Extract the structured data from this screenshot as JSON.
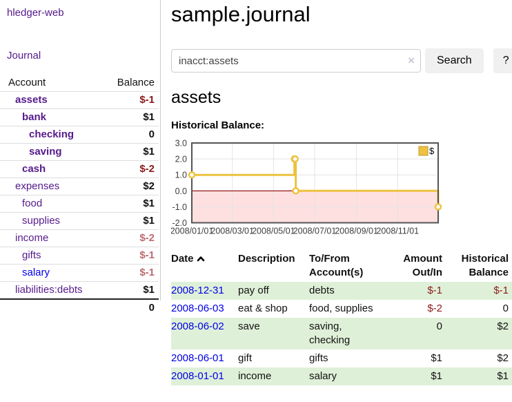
{
  "brand": "hledger-web",
  "colors": {
    "link_purple": "#551a8b",
    "link_blue": "#0000e6",
    "negative_dark": "#8b1a1a",
    "negative_light": "#bd6a70",
    "row_green": "#dff0d8",
    "series_gold": "#edc240",
    "zero_line": "#8b0000",
    "negative_region": "rgba(255,0,0,0.12)"
  },
  "sidebar": {
    "journal_label": "Journal",
    "accounts": {
      "col_account": "Account",
      "col_balance": "Balance",
      "rows": [
        {
          "account": "assets",
          "balance": "$-1",
          "depth": 0,
          "bold": true
        },
        {
          "account": "bank",
          "balance": "$1",
          "depth": 1,
          "bold": true
        },
        {
          "account": "checking",
          "balance": "0",
          "depth": 2,
          "bold": true
        },
        {
          "account": "saving",
          "balance": "$1",
          "depth": 2,
          "bold": true
        },
        {
          "account": "cash",
          "balance": "$-2",
          "depth": 1,
          "bold": true
        },
        {
          "account": "expenses",
          "balance": "$2",
          "depth": 0,
          "bold": false
        },
        {
          "account": "food",
          "balance": "$1",
          "depth": 1,
          "bold": false
        },
        {
          "account": "supplies",
          "balance": "$1",
          "depth": 1,
          "bold": false
        },
        {
          "account": "income",
          "balance": "$-2",
          "depth": 0,
          "bold": false
        },
        {
          "account": "gifts",
          "balance": "$-1",
          "depth": 1,
          "bold": false
        },
        {
          "account": "salary",
          "balance": "$-1",
          "depth": 1,
          "bold": false,
          "link_color": "blue"
        },
        {
          "account": "liabilities:debts",
          "balance": "$1",
          "depth": 0,
          "bold": false
        }
      ],
      "total": "0"
    }
  },
  "header": {
    "title": "sample.journal"
  },
  "search": {
    "value": "inacct:assets",
    "clear_icon": "×",
    "button_label": "Search",
    "help_label": "?"
  },
  "account": {
    "title": "assets",
    "chart_label": "Historical Balance:"
  },
  "chart_data": {
    "type": "line",
    "step": true,
    "title": "Historical Balance:",
    "series": [
      {
        "name": "$",
        "color": "#edc240",
        "points": [
          [
            "2008-01-01",
            1
          ],
          [
            "2008-06-01",
            2
          ],
          [
            "2008-06-02",
            2
          ],
          [
            "2008-06-03",
            0
          ],
          [
            "2008-12-31",
            -1
          ]
        ]
      }
    ],
    "x_ticks": [
      "2008/01/01",
      "2008/03/01",
      "2008/05/01",
      "2008/07/01",
      "2008/09/01",
      "2008/11/01"
    ],
    "y_ticks": [
      "3.0",
      "2.0",
      "1.0",
      "0.0",
      "-1.0",
      "-2.0"
    ],
    "ylim": [
      -2,
      3
    ],
    "xlim_dates": [
      "2008-01-01",
      "2008-12-31"
    ],
    "grid": true,
    "legend_position": "top-right",
    "negative_region": true
  },
  "register": {
    "columns": {
      "date": "Date",
      "description": "Description",
      "accounts": "To/From Account(s)",
      "amount": "Amount Out/In",
      "balance": "Historical Balance"
    },
    "sort": "ascending",
    "rows": [
      {
        "date": "2008-12-31",
        "description": "pay off",
        "accounts": "debts",
        "amount": "$-1",
        "balance": "$-1"
      },
      {
        "date": "2008-06-03",
        "description": "eat & shop",
        "accounts": "food, supplies",
        "amount": "$-2",
        "balance": "0"
      },
      {
        "date": "2008-06-02",
        "description": "save",
        "accounts": "saving, checking",
        "amount": "0",
        "balance": "$2"
      },
      {
        "date": "2008-06-01",
        "description": "gift",
        "accounts": "gifts",
        "amount": "$1",
        "balance": "$2"
      },
      {
        "date": "2008-01-01",
        "description": "income",
        "accounts": "salary",
        "amount": "$1",
        "balance": "$1"
      }
    ]
  }
}
